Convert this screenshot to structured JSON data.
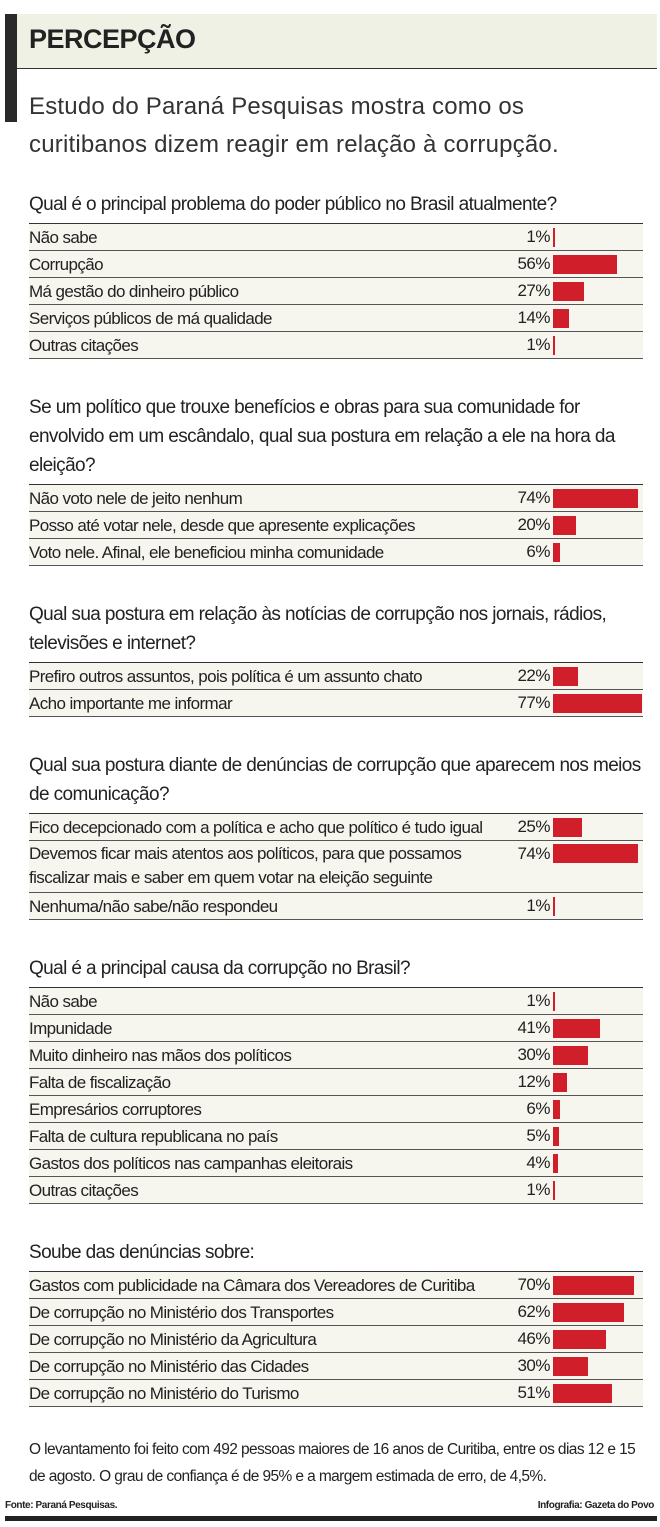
{
  "header": {
    "title": "PERCEPÇÃO",
    "subtitle": "Estudo do Paraná Pesquisas mostra como os curitibanos dizem reagir em relação à corrupção."
  },
  "colors": {
    "bar": "#d01e2a",
    "header_bg": "#eff1e4"
  },
  "chart_data": [
    {
      "type": "bar",
      "title": "Qual é o principal problema do poder público no Brasil atualmente?",
      "categories": [
        "Não sabe",
        "Corrupção",
        "Má gestão do dinheiro público",
        "Serviços públicos de má qualidade",
        "Outras citações"
      ],
      "values": [
        1,
        56,
        27,
        14,
        1
      ],
      "labels": [
        "1%",
        "56%",
        "27%",
        "14%",
        "1%"
      ]
    },
    {
      "type": "bar",
      "title": "Se um político que trouxe benefícios e obras para sua comunidade for envolvido em um escândalo, qual sua postura em relação a ele na hora da eleição?",
      "categories": [
        "Não voto nele de jeito nenhum",
        "Posso até votar nele, desde que apresente explicações",
        "Voto nele. Afinal, ele beneficiou minha comunidade"
      ],
      "values": [
        74,
        20,
        6
      ],
      "labels": [
        "74%",
        "20%",
        "6%"
      ]
    },
    {
      "type": "bar",
      "title": "Qual sua postura em relação às notícias de corrupção nos jornais, rádios, televisões e internet?",
      "categories": [
        "Prefiro outros assuntos, pois política é um assunto chato",
        "Acho importante me informar"
      ],
      "values": [
        22,
        77
      ],
      "labels": [
        "22%",
        "77%"
      ]
    },
    {
      "type": "bar",
      "title": "Qual sua postura diante de denúncias de corrupção que aparecem nos meios de comunicação?",
      "categories": [
        "Fico decepcionado com a política e acho que político é tudo igual",
        "Devemos ficar mais atentos aos políticos, para que possamos fiscalizar mais e saber em quem votar na eleição seguinte",
        "Nenhuma/não sabe/não respondeu"
      ],
      "values": [
        25,
        74,
        1
      ],
      "labels": [
        "25%",
        "74%",
        "1%"
      ]
    },
    {
      "type": "bar",
      "title": "Qual é a principal causa da corrupção no Brasil?",
      "categories": [
        "Não sabe",
        "Impunidade",
        "Muito dinheiro nas mãos dos políticos",
        "Falta de fiscalização",
        "Empresários corruptores",
        "Falta de cultura republicana no país",
        "Gastos dos políticos nas campanhas eleitorais",
        "Outras citações"
      ],
      "values": [
        1,
        41,
        30,
        12,
        6,
        5,
        4,
        1
      ],
      "labels": [
        "1%",
        "41%",
        "30%",
        "12%",
        "6%",
        "5%",
        "4%",
        "1%"
      ]
    },
    {
      "type": "bar",
      "title": "Soube das denúncias sobre:",
      "categories": [
        "Gastos com publicidade na Câmara dos Vereadores de Curitiba",
        "De corrupção no Ministério dos Transportes",
        "De corrupção no Ministério da Agricultura",
        "De corrupção no Ministério das Cidades",
        "De corrupção no Ministério do Turismo"
      ],
      "values": [
        70,
        62,
        46,
        30,
        51
      ],
      "labels": [
        "70%",
        "62%",
        "46%",
        "30%",
        "51%"
      ]
    }
  ],
  "footer": {
    "note": "O levantamento foi feito com 492 pessoas maiores de 16 anos de Curitiba, entre os dias 12 e 15 de agosto. O grau de confiança é de 95% e a margem estimada de erro, de 4,5%.",
    "source": "Fonte: Paraná Pesquisas.",
    "credit": "Infografia: Gazeta do Povo"
  }
}
